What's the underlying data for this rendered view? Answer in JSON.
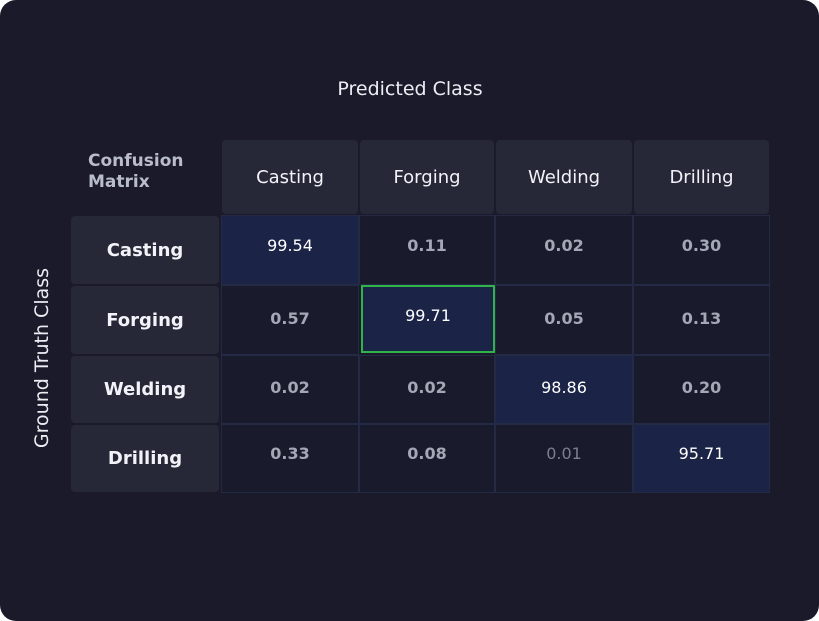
{
  "chart_data": {
    "type": "heatmap",
    "title": "Confusion Matrix",
    "xlabel": "Predicted Class",
    "ylabel": "Ground Truth Class",
    "x_categories": [
      "Casting",
      "Forging",
      "Welding",
      "Drilling"
    ],
    "y_categories": [
      "Casting",
      "Forging",
      "Welding",
      "Drilling"
    ],
    "values": [
      [
        "99.54",
        "0.11",
        "0.02",
        "0.30"
      ],
      [
        "0.57",
        "99.71",
        "0.05",
        "0.13"
      ],
      [
        "0.02",
        "0.02",
        "98.86",
        "0.20"
      ],
      [
        "0.33",
        "0.08",
        "0.01",
        "95.71"
      ]
    ],
    "highlighted_cell": {
      "row": 1,
      "col": 1
    },
    "highlight_color": "#2fb44a",
    "colors": {
      "background": "#1a1a2b",
      "diagonal_cell": "#1b2346",
      "offdiag_cell": "#191a2b",
      "header_cell": "#262737",
      "high_text": "#ffffff",
      "mid_text": "#a3a7b6",
      "low_text": "#7b7f8e"
    }
  }
}
